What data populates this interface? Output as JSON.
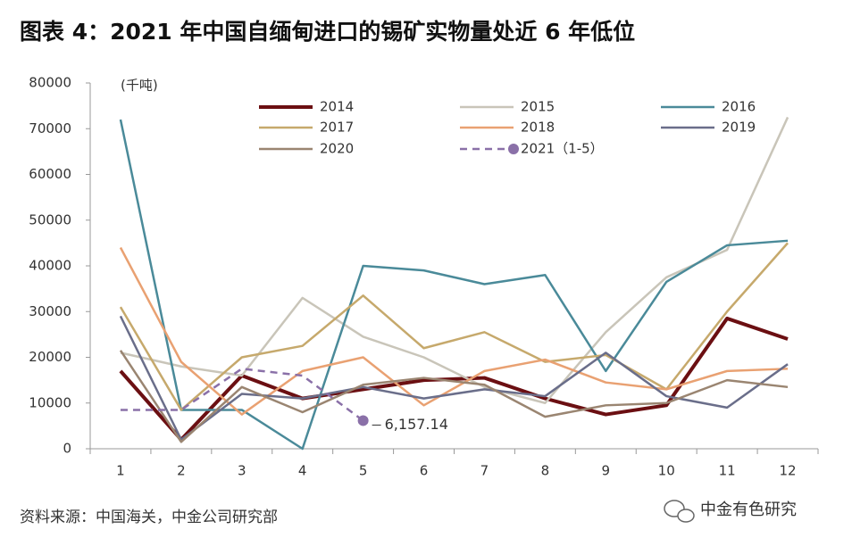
{
  "chart_data": {
    "type": "line",
    "title": "图表 4：2021 年中国自缅甸进口的锡矿实物量处近 6 年低位",
    "y_label": "(千吨)",
    "source": "资料来源：中国海关，中金公司研究部",
    "watermark": "中金有色研究",
    "categories": [
      "1",
      "2",
      "3",
      "4",
      "5",
      "6",
      "7",
      "8",
      "9",
      "10",
      "11",
      "12"
    ],
    "ylim": [
      0,
      80000
    ],
    "yticks": [
      0,
      10000,
      20000,
      30000,
      40000,
      50000,
      60000,
      70000,
      80000
    ],
    "series": [
      {
        "name": "2014",
        "color": "#6b0f12",
        "width": 4,
        "values": [
          17000,
          2000,
          16000,
          11000,
          13000,
          15000,
          15500,
          11000,
          7500,
          9500,
          28500,
          24000
        ]
      },
      {
        "name": "2015",
        "color": "#c9c5b9",
        "width": 2.5,
        "values": [
          21000,
          18000,
          16000,
          33000,
          24500,
          20000,
          13500,
          10000,
          25500,
          37500,
          43500,
          72500
        ]
      },
      {
        "name": "2016",
        "color": "#4a8a99",
        "width": 2.5,
        "values": [
          72000,
          8500,
          8500,
          0,
          40000,
          39000,
          36000,
          38000,
          17000,
          36500,
          44500,
          45500
        ]
      },
      {
        "name": "2017",
        "color": "#c6a96c",
        "width": 2.5,
        "values": [
          31000,
          8500,
          20000,
          22500,
          33500,
          22000,
          25500,
          19000,
          20500,
          13000,
          30000,
          45000
        ]
      },
      {
        "name": "2018",
        "color": "#e9a172",
        "width": 2.5,
        "values": [
          44000,
          19000,
          7500,
          17000,
          20000,
          9500,
          17000,
          19500,
          14500,
          13000,
          17000,
          17500
        ]
      },
      {
        "name": "2019",
        "color": "#6a6e8a",
        "width": 2.5,
        "values": [
          29000,
          2000,
          12000,
          11000,
          13500,
          11000,
          13000,
          11500,
          21000,
          11500,
          9000,
          18500
        ]
      },
      {
        "name": "2020",
        "color": "#9a8571",
        "width": 2.5,
        "values": [
          21500,
          1500,
          13500,
          8000,
          14000,
          15500,
          14000,
          7000,
          9500,
          10000,
          15000,
          13500
        ]
      },
      {
        "name": "2021（1-5）",
        "color": "#8a70a8",
        "width": 2.5,
        "dashed": true,
        "end_marker": true,
        "values": [
          8500,
          8500,
          17500,
          16000,
          6157.14,
          null,
          null,
          null,
          null,
          null,
          null,
          null
        ],
        "value_labels": [
          null,
          null,
          null,
          null,
          "6,157.14",
          null,
          null,
          null,
          null,
          null,
          null,
          null
        ]
      }
    ]
  }
}
